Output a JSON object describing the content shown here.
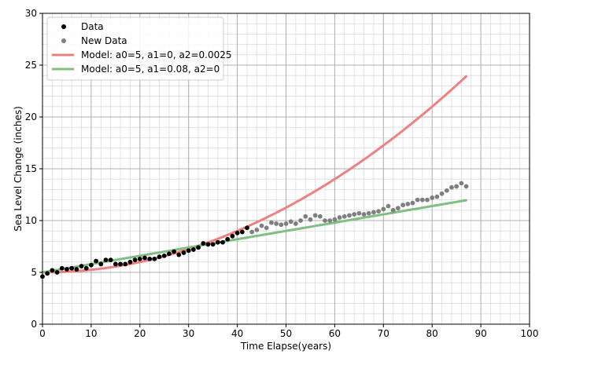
{
  "chart_data": {
    "type": "scatter",
    "xlabel": "Time Elapse(years)",
    "ylabel": "Sea Level Change (inches)",
    "xlim": [
      0,
      100
    ],
    "ylim": [
      0,
      30
    ],
    "x_ticks": [
      0,
      10,
      20,
      30,
      40,
      50,
      60,
      70,
      80,
      90,
      100
    ],
    "y_ticks": [
      0,
      5,
      10,
      15,
      20,
      25,
      30
    ],
    "x_minor_step": 2,
    "y_minor_step": 1,
    "grid": true,
    "legend_position": "upper-left",
    "series": [
      {
        "name": "Data",
        "kind": "scatter",
        "color": "#000000",
        "x": [
          0,
          1,
          2,
          3,
          4,
          5,
          6,
          7,
          8,
          9,
          10,
          11,
          12,
          13,
          14,
          15,
          16,
          17,
          18,
          19,
          20,
          21,
          22,
          23,
          24,
          25,
          26,
          27,
          28,
          29,
          30,
          31,
          32,
          33,
          34,
          35,
          36,
          37,
          38,
          39,
          40,
          41,
          42
        ],
        "y": [
          4.6,
          4.9,
          5.2,
          5.0,
          5.4,
          5.3,
          5.4,
          5.3,
          5.6,
          5.4,
          5.7,
          6.1,
          5.8,
          6.2,
          6.2,
          5.8,
          5.8,
          5.8,
          6.0,
          6.2,
          6.3,
          6.4,
          6.3,
          6.3,
          6.5,
          6.6,
          6.8,
          7.0,
          6.7,
          6.9,
          7.1,
          7.2,
          7.4,
          7.8,
          7.7,
          7.7,
          7.9,
          7.9,
          8.2,
          8.5,
          8.8,
          8.9,
          9.3
        ]
      },
      {
        "name": "New Data",
        "kind": "scatter",
        "color": "#7f7f7f",
        "x": [
          43,
          44,
          45,
          46,
          47,
          48,
          49,
          50,
          51,
          52,
          53,
          54,
          55,
          56,
          57,
          58,
          59,
          60,
          61,
          62,
          63,
          64,
          65,
          66,
          67,
          68,
          69,
          70,
          71,
          72,
          73,
          74,
          75,
          76,
          77,
          78,
          79,
          80,
          81,
          82,
          83,
          84,
          85,
          86,
          87
        ],
        "y": [
          8.9,
          9.1,
          9.5,
          9.3,
          9.8,
          9.7,
          9.6,
          9.7,
          9.9,
          9.7,
          10.0,
          10.4,
          10.1,
          10.5,
          10.4,
          10.0,
          10.0,
          10.1,
          10.3,
          10.4,
          10.5,
          10.6,
          10.7,
          10.6,
          10.7,
          10.8,
          10.9,
          11.1,
          11.4,
          11.0,
          11.2,
          11.5,
          11.6,
          11.7,
          12.0,
          12.0,
          12.0,
          12.2,
          12.3,
          12.6,
          12.9,
          13.2,
          13.3,
          13.6,
          13.3
        ]
      },
      {
        "name": "Model: a0=5, a1=0, a2=0.0025",
        "kind": "line",
        "color": "#f08080",
        "model": {
          "a0": 5,
          "a1": 0,
          "a2": 0.0025
        },
        "x_range": [
          0,
          87
        ]
      },
      {
        "name": "Model: a0=5, a1=0.08, a2=0",
        "kind": "line",
        "color": "#7fbf7f",
        "model": {
          "a0": 5,
          "a1": 0.08,
          "a2": 0
        },
        "x_range": [
          0,
          87
        ]
      }
    ]
  }
}
